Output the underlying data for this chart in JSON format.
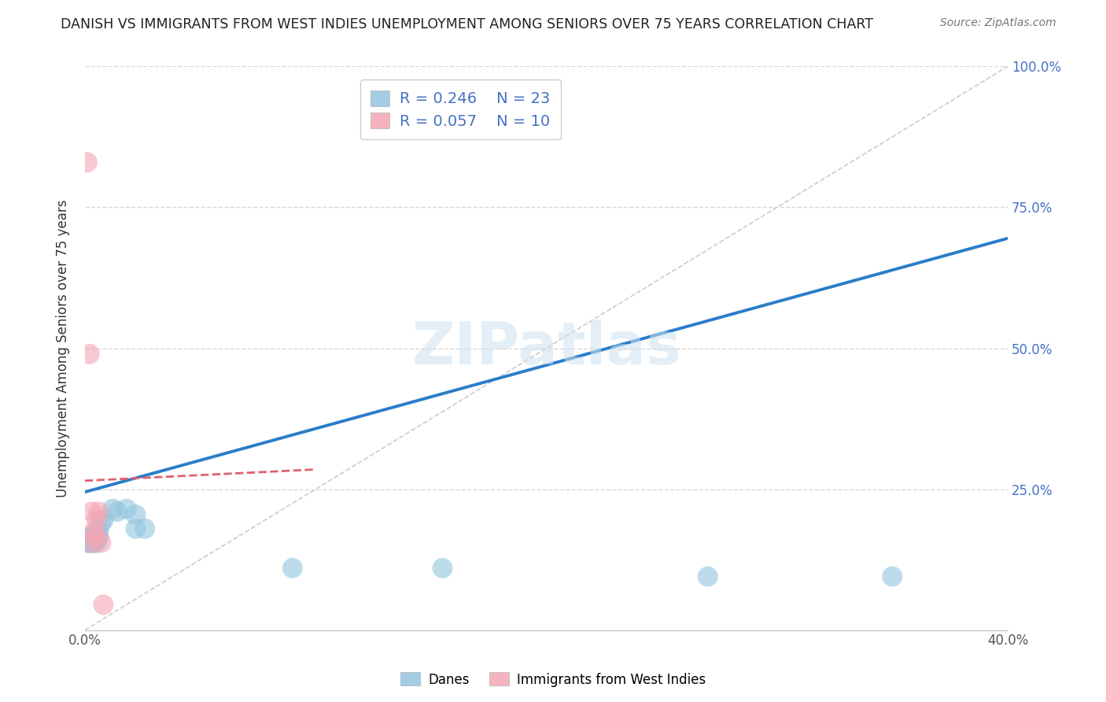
{
  "title": "DANISH VS IMMIGRANTS FROM WEST INDIES UNEMPLOYMENT AMONG SENIORS OVER 75 YEARS CORRELATION CHART",
  "source": "Source: ZipAtlas.com",
  "ylabel": "Unemployment Among Seniors over 75 years",
  "xlim": [
    0,
    0.4
  ],
  "ylim": [
    0,
    1.0
  ],
  "danes_R": 0.246,
  "danes_N": 23,
  "immigrants_R": 0.057,
  "immigrants_N": 10,
  "legend_label_danes": "Danes",
  "legend_label_immigrants": "Immigrants from West Indies",
  "danes_color": "#92c5de",
  "immigrants_color": "#f4a6b5",
  "trend_danes_color": "#2a7dc9",
  "trend_immigrants_color": "#e06070",
  "watermark": "ZIPatlas",
  "danes_x": [
    0.001,
    0.002,
    0.002,
    0.003,
    0.003,
    0.004,
    0.004,
    0.005,
    0.005,
    0.006,
    0.006,
    0.007,
    0.008,
    0.012,
    0.014,
    0.018,
    0.022,
    0.022,
    0.026,
    0.09,
    0.155,
    0.27,
    0.35
  ],
  "danes_y": [
    0.155,
    0.155,
    0.165,
    0.155,
    0.165,
    0.17,
    0.155,
    0.165,
    0.155,
    0.165,
    0.175,
    0.19,
    0.195,
    0.215,
    0.21,
    0.215,
    0.205,
    0.18,
    0.18,
    0.11,
    0.11,
    0.095,
    0.095
  ],
  "immigrants_x": [
    0.001,
    0.002,
    0.003,
    0.003,
    0.004,
    0.005,
    0.005,
    0.006,
    0.007,
    0.008
  ],
  "immigrants_y": [
    0.83,
    0.49,
    0.21,
    0.155,
    0.175,
    0.165,
    0.195,
    0.21,
    0.155,
    0.045
  ],
  "dot_size": 350,
  "danes_trend_x": [
    0.0,
    0.4
  ],
  "danes_trend_y": [
    0.245,
    0.695
  ],
  "immigrants_trend_x": [
    0.0,
    0.1
  ],
  "immigrants_trend_y": [
    0.265,
    0.285
  ]
}
